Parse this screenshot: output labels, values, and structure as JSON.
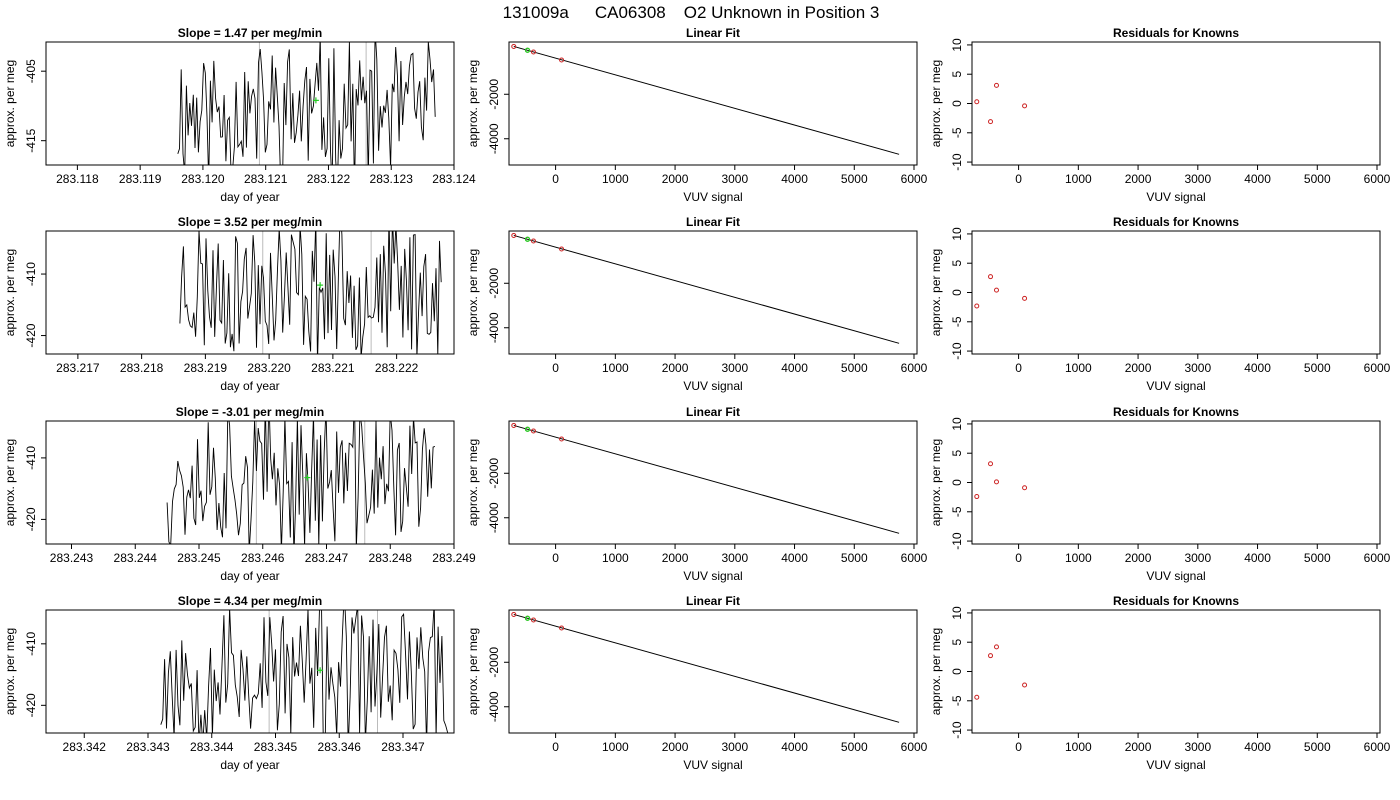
{
  "page": {
    "title_id": "131009a",
    "title_cyl": "CA06308",
    "title_desc": "O2 Unknown in Position  3"
  },
  "colors": {
    "trace": "#000000",
    "marker_known": "#cc2222",
    "marker_unknown": "#22cc22",
    "vline": "#bbbbbb"
  },
  "chart_data": [
    {
      "type": "line",
      "panel": "trace",
      "row": 0,
      "title": "Slope =  1.47  per meg/min",
      "xlabel": "day of year",
      "ylabel": "approx. per meg",
      "xlim": [
        283.1175,
        283.124
      ],
      "ylim": [
        -418.5,
        -400.8
      ],
      "xticks": [
        283.118,
        283.119,
        283.12,
        283.121,
        283.122,
        283.123,
        283.124
      ],
      "xtick_labels": [
        "283.118",
        "283.119",
        "283.120",
        "283.121",
        "283.122",
        "283.123",
        "283.124"
      ],
      "yticks": [
        -415,
        -405
      ],
      "ytick_labels": [
        "-415",
        "-405"
      ],
      "x_start": 283.1196,
      "x_end": 283.1237,
      "seed": 11,
      "mean": -410.8,
      "amp": 9.0,
      "vlines": [
        283.1209,
        283.1226
      ],
      "point": [
        283.1218,
        -409.2
      ]
    },
    {
      "type": "line",
      "panel": "trace",
      "row": 1,
      "title": "Slope =  3.52  per meg/min",
      "xlabel": "day of year",
      "ylabel": "approx. per meg",
      "xlim": [
        283.2165,
        283.2229
      ],
      "ylim": [
        -423.0,
        -403.0
      ],
      "xticks": [
        283.217,
        283.218,
        283.219,
        283.22,
        283.221,
        283.222
      ],
      "xtick_labels": [
        "283.217",
        "283.218",
        "283.219",
        "283.220",
        "283.221",
        "283.222"
      ],
      "yticks": [
        -420,
        -410
      ],
      "ytick_labels": [
        "-420",
        "-410"
      ],
      "x_start": 283.2186,
      "x_end": 283.2227,
      "seed": 23,
      "mean": -412.0,
      "amp": 10.0,
      "vlines": [
        283.2199,
        283.2216
      ],
      "point": [
        283.2208,
        -411.8
      ]
    },
    {
      "type": "line",
      "panel": "trace",
      "row": 2,
      "title": "Slope =  -3.01  per meg/min",
      "xlabel": "day of year",
      "ylabel": "approx. per meg",
      "xlim": [
        283.2426,
        283.249
      ],
      "ylim": [
        -424.0,
        -404.0
      ],
      "xticks": [
        283.243,
        283.244,
        283.245,
        283.246,
        283.247,
        283.248,
        283.249
      ],
      "xtick_labels": [
        "283.243",
        "283.244",
        "283.245",
        "283.246",
        "283.247",
        "283.248",
        "283.249"
      ],
      "yticks": [
        -420,
        -410
      ],
      "ytick_labels": [
        "-420",
        "-410"
      ],
      "x_start": 283.2445,
      "x_end": 283.2487,
      "seed": 37,
      "mean": -413.0,
      "amp": 10.5,
      "vlines": [
        283.2459,
        283.2476
      ],
      "point": [
        283.2467,
        -413.2
      ]
    },
    {
      "type": "line",
      "panel": "trace",
      "row": 3,
      "title": "Slope =  4.34  per meg/min",
      "xlabel": "day of year",
      "ylabel": "approx. per meg",
      "xlim": [
        283.3414,
        283.3478
      ],
      "ylim": [
        -424.5,
        -404.5
      ],
      "xticks": [
        283.342,
        283.343,
        283.344,
        283.345,
        283.346,
        283.347
      ],
      "xtick_labels": [
        "283.342",
        "283.343",
        "283.344",
        "283.345",
        "283.346",
        "283.347"
      ],
      "yticks": [
        -420,
        -410
      ],
      "ytick_labels": [
        "-420",
        "-410"
      ],
      "x_start": 283.3432,
      "x_end": 283.3477,
      "seed": 53,
      "mean": -415.0,
      "amp": 10.5,
      "vlines": [
        283.3449,
        283.3466
      ],
      "point": [
        283.3457,
        -414.3
      ]
    },
    {
      "type": "scatter",
      "panel": "fit",
      "row": 0,
      "title": "Linear Fit",
      "xlabel": "VUV signal",
      "ylabel": "approx. per meg",
      "xlim": [
        -780,
        6050
      ],
      "ylim": [
        -5180,
        350
      ],
      "xticks": [
        0,
        1000,
        2000,
        3000,
        4000,
        5000,
        6000
      ],
      "xtick_labels": [
        "0",
        "1000",
        "2000",
        "3000",
        "4000",
        "5000",
        "6000"
      ],
      "yticks": [
        -4000,
        -2000
      ],
      "ytick_labels": [
        "-4000",
        "-2000"
      ],
      "line": [
        [
          -700,
          150
        ],
        [
          5750,
          -4700
        ]
      ],
      "known_points": [
        [
          -700,
          150
        ],
        [
          -470,
          -20
        ],
        [
          -370,
          -100
        ],
        [
          100,
          -460
        ]
      ],
      "unknown_points": [
        [
          -470,
          -22
        ]
      ]
    },
    {
      "type": "scatter",
      "panel": "fit",
      "row": 1,
      "title": "Linear Fit",
      "xlabel": "VUV signal",
      "ylabel": "approx. per meg",
      "xlim": [
        -780,
        6050
      ],
      "ylim": [
        -5180,
        350
      ],
      "xticks": [
        0,
        1000,
        2000,
        3000,
        4000,
        5000,
        6000
      ],
      "xtick_labels": [
        "0",
        "1000",
        "2000",
        "3000",
        "4000",
        "5000",
        "6000"
      ],
      "yticks": [
        -4000,
        -2000
      ],
      "ytick_labels": [
        "-4000",
        "-2000"
      ],
      "line": [
        [
          -700,
          150
        ],
        [
          5750,
          -4700
        ]
      ],
      "known_points": [
        [
          -700,
          150
        ],
        [
          -470,
          -20
        ],
        [
          -370,
          -100
        ],
        [
          100,
          -460
        ]
      ],
      "unknown_points": [
        [
          -470,
          -22
        ]
      ]
    },
    {
      "type": "scatter",
      "panel": "fit",
      "row": 2,
      "title": "Linear Fit",
      "xlabel": "VUV signal",
      "ylabel": "approx. per meg",
      "xlim": [
        -780,
        6050
      ],
      "ylim": [
        -5180,
        350
      ],
      "xticks": [
        0,
        1000,
        2000,
        3000,
        4000,
        5000,
        6000
      ],
      "xtick_labels": [
        "0",
        "1000",
        "2000",
        "3000",
        "4000",
        "5000",
        "6000"
      ],
      "yticks": [
        -4000,
        -2000
      ],
      "ytick_labels": [
        "-4000",
        "-2000"
      ],
      "line": [
        [
          -700,
          150
        ],
        [
          5750,
          -4700
        ]
      ],
      "known_points": [
        [
          -700,
          150
        ],
        [
          -470,
          -20
        ],
        [
          -370,
          -100
        ],
        [
          100,
          -460
        ]
      ],
      "unknown_points": [
        [
          -470,
          -22
        ]
      ]
    },
    {
      "type": "scatter",
      "panel": "fit",
      "row": 3,
      "title": "Linear Fit",
      "xlabel": "VUV signal",
      "ylabel": "approx. per meg",
      "xlim": [
        -780,
        6050
      ],
      "ylim": [
        -5180,
        350
      ],
      "xticks": [
        0,
        1000,
        2000,
        3000,
        4000,
        5000,
        6000
      ],
      "xtick_labels": [
        "0",
        "1000",
        "2000",
        "3000",
        "4000",
        "5000",
        "6000"
      ],
      "yticks": [
        -4000,
        -2000
      ],
      "ytick_labels": [
        "-4000",
        "-2000"
      ],
      "line": [
        [
          -700,
          150
        ],
        [
          5750,
          -4700
        ]
      ],
      "known_points": [
        [
          -700,
          150
        ],
        [
          -470,
          -20
        ],
        [
          -370,
          -100
        ],
        [
          100,
          -460
        ]
      ],
      "unknown_points": [
        [
          -470,
          -22
        ]
      ]
    },
    {
      "type": "scatter",
      "panel": "resid",
      "row": 0,
      "title": "Residuals for Knowns",
      "xlabel": "VUV signal",
      "ylabel": "approx. per meg",
      "xlim": [
        -780,
        6050
      ],
      "ylim": [
        -10.5,
        10.5
      ],
      "xticks": [
        0,
        1000,
        2000,
        3000,
        4000,
        5000,
        6000
      ],
      "xtick_labels": [
        "0",
        "1000",
        "2000",
        "3000",
        "4000",
        "5000",
        "6000"
      ],
      "yticks": [
        -10,
        -5,
        0,
        5,
        10
      ],
      "ytick_labels": [
        "-10",
        "-5",
        "0",
        "5",
        "10"
      ],
      "points": [
        [
          -700,
          0.3
        ],
        [
          -470,
          -3.1
        ],
        [
          -370,
          3.1
        ],
        [
          100,
          -0.4
        ]
      ]
    },
    {
      "type": "scatter",
      "panel": "resid",
      "row": 1,
      "title": "Residuals for Knowns",
      "xlabel": "VUV signal",
      "ylabel": "approx. per meg",
      "xlim": [
        -780,
        6050
      ],
      "ylim": [
        -10.5,
        10.5
      ],
      "xticks": [
        0,
        1000,
        2000,
        3000,
        4000,
        5000,
        6000
      ],
      "xtick_labels": [
        "0",
        "1000",
        "2000",
        "3000",
        "4000",
        "5000",
        "6000"
      ],
      "yticks": [
        -10,
        -5,
        0,
        5,
        10
      ],
      "ytick_labels": [
        "-10",
        "-5",
        "0",
        "5",
        "10"
      ],
      "points": [
        [
          -700,
          -2.3
        ],
        [
          -470,
          2.7
        ],
        [
          -370,
          0.4
        ],
        [
          100,
          -1.0
        ]
      ]
    },
    {
      "type": "scatter",
      "panel": "resid",
      "row": 2,
      "title": "Residuals for Knowns",
      "xlabel": "VUV signal",
      "ylabel": "approx. per meg",
      "xlim": [
        -780,
        6050
      ],
      "ylim": [
        -10.5,
        10.5
      ],
      "xticks": [
        0,
        1000,
        2000,
        3000,
        4000,
        5000,
        6000
      ],
      "xtick_labels": [
        "0",
        "1000",
        "2000",
        "3000",
        "4000",
        "5000",
        "6000"
      ],
      "yticks": [
        -10,
        -5,
        0,
        5,
        10
      ],
      "ytick_labels": [
        "-10",
        "-5",
        "0",
        "5",
        "10"
      ],
      "points": [
        [
          -700,
          -2.4
        ],
        [
          -470,
          3.2
        ],
        [
          -370,
          0.1
        ],
        [
          100,
          -0.9
        ]
      ]
    },
    {
      "type": "scatter",
      "panel": "resid",
      "row": 3,
      "title": "Residuals for Knowns",
      "xlabel": "VUV signal",
      "ylabel": "approx. per meg",
      "xlim": [
        -780,
        6050
      ],
      "ylim": [
        -10.5,
        10.5
      ],
      "xticks": [
        0,
        1000,
        2000,
        3000,
        4000,
        5000,
        6000
      ],
      "xtick_labels": [
        "0",
        "1000",
        "2000",
        "3000",
        "4000",
        "5000",
        "6000"
      ],
      "yticks": [
        -10,
        -5,
        0,
        5,
        10
      ],
      "ytick_labels": [
        "-10",
        "-5",
        "0",
        "5",
        "10"
      ],
      "points": [
        [
          -700,
          -4.4
        ],
        [
          -470,
          2.7
        ],
        [
          -370,
          4.2
        ],
        [
          100,
          -2.3
        ]
      ]
    }
  ]
}
